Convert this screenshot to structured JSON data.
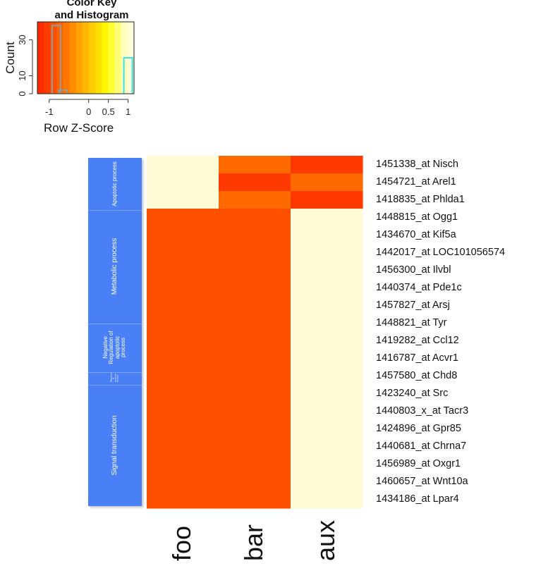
{
  "color_key": {
    "title": "Color Key\nand Histogram",
    "ylabel": "Count",
    "xlabel": "Row Z-Score",
    "x_ticks": [
      "-1",
      "0",
      "0.5",
      "1"
    ],
    "x_tick_values": [
      -1,
      0,
      0.5,
      1
    ],
    "y_ticks": [
      "0",
      "10",
      "30"
    ],
    "y_tick_values": [
      0,
      10,
      30
    ],
    "x_range": [
      -1.3,
      1.15
    ],
    "y_range": [
      0,
      40
    ],
    "colors": [
      "#ff2a00",
      "#ff3b00",
      "#ff4e00",
      "#ff6200",
      "#ff7700",
      "#ff8c00",
      "#ffa200",
      "#ffb700",
      "#ffcc00",
      "#ffe100",
      "#fff500",
      "#ffff33",
      "#ffff77",
      "#ffffbb",
      "#fffbd6"
    ],
    "histogram": {
      "x": [
        -0.82,
        -0.65,
        1.0
      ],
      "counts": [
        38,
        2,
        20
      ]
    }
  },
  "chart_data": {
    "type": "heatmap",
    "title": "Color Key and Histogram",
    "xlabel": "Row Z-Score",
    "ylabel": "Count",
    "columns": [
      "foo",
      "bar",
      "aux"
    ],
    "rows": [
      "1451338_at Nisch",
      "1454721_at Arel1",
      "1418835_at Phlda1",
      "1448815_at Ogg1",
      "1434670_at Kif5a",
      "1442017_at LOC101056574",
      "1456300_at Ilvbl",
      "1440374_at Pde1c",
      "1457827_at Arsj",
      "1448821_at Tyr",
      "1419282_at Ccl12",
      "1416787_at Acvr1",
      "1457580_at Chd8",
      "1423240_at Src",
      "1440803_x_at Tacr3",
      "1424896_at Gpr85",
      "1440681_at Chrna7",
      "1456989_at Oxgr1",
      "1460657_at Wnt10a",
      "1434186_at Lpar4"
    ],
    "values": [
      [
        1.15,
        -0.5,
        -0.65
      ],
      [
        1.15,
        -0.65,
        -0.5
      ],
      [
        1.15,
        -0.5,
        -0.65
      ],
      [
        -0.58,
        -0.58,
        1.15
      ],
      [
        -0.58,
        -0.58,
        1.15
      ],
      [
        -0.58,
        -0.58,
        1.15
      ],
      [
        -0.58,
        -0.58,
        1.15
      ],
      [
        -0.58,
        -0.58,
        1.15
      ],
      [
        -0.58,
        -0.58,
        1.15
      ],
      [
        -0.58,
        -0.58,
        1.15
      ],
      [
        -0.58,
        -0.58,
        1.15
      ],
      [
        -0.58,
        -0.58,
        1.15
      ],
      [
        -0.58,
        -0.58,
        1.15
      ],
      [
        -0.58,
        -0.58,
        1.15
      ],
      [
        -0.58,
        -0.58,
        1.15
      ],
      [
        -0.58,
        -0.58,
        1.15
      ],
      [
        -0.58,
        -0.58,
        1.15
      ],
      [
        -0.58,
        -0.58,
        1.15
      ],
      [
        -0.58,
        -0.58,
        1.15
      ],
      [
        -0.58,
        -0.58,
        1.15
      ]
    ],
    "color_scale": {
      "low": "#ff3a00",
      "mid": "#ff6a00",
      "high": "#fffbd6"
    }
  },
  "row_groups": [
    {
      "label": "Apoptotic process",
      "first_row": 0,
      "row_count": 3
    },
    {
      "label": "Metabolic process",
      "first_row": 3,
      "row_count": 6.5
    },
    {
      "label": "Negative Regulation of apoptotic process",
      "first_row": 9.5,
      "row_count": 2.8
    },
    {
      "label": "Regulation of apoptotic process",
      "first_row": 12.3,
      "row_count": 0.75
    },
    {
      "label": "Signal transduction",
      "first_row": 13.05,
      "row_count": 6.95
    }
  ]
}
